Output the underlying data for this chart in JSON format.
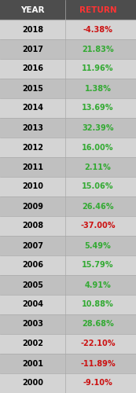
{
  "title_year": "YEAR",
  "title_return": "RETURN",
  "rows": [
    {
      "year": "2018",
      "return": "-4.38%",
      "negative": true
    },
    {
      "year": "2017",
      "return": "21.83%",
      "negative": false
    },
    {
      "year": "2016",
      "return": "11.96%",
      "negative": false
    },
    {
      "year": "2015",
      "return": "1.38%",
      "negative": false
    },
    {
      "year": "2014",
      "return": "13.69%",
      "negative": false
    },
    {
      "year": "2013",
      "return": "32.39%",
      "negative": false
    },
    {
      "year": "2012",
      "return": "16.00%",
      "negative": false
    },
    {
      "year": "2011",
      "return": "2.11%",
      "negative": false
    },
    {
      "year": "2010",
      "return": "15.06%",
      "negative": false
    },
    {
      "year": "2009",
      "return": "26.46%",
      "negative": false
    },
    {
      "year": "2008",
      "return": "-37.00%",
      "negative": true
    },
    {
      "year": "2007",
      "return": "5.49%",
      "negative": false
    },
    {
      "year": "2006",
      "return": "15.79%",
      "negative": false
    },
    {
      "year": "2005",
      "return": "4.91%",
      "negative": false
    },
    {
      "year": "2004",
      "return": "10.88%",
      "negative": false
    },
    {
      "year": "2003",
      "return": "28.68%",
      "negative": false
    },
    {
      "year": "2002",
      "return": "-22.10%",
      "negative": true
    },
    {
      "year": "2001",
      "return": "-11.89%",
      "negative": true
    },
    {
      "year": "2000",
      "return": "-9.10%",
      "negative": true
    }
  ],
  "header_bg": "#4d4d4d",
  "header_text_color": "#ffffff",
  "header_return_color": "#ff3333",
  "row_bg_odd": "#d4d4d4",
  "row_bg_even": "#c0c0c0",
  "positive_color": "#33aa33",
  "negative_color": "#cc1111",
  "year_color": "#000000",
  "divider_color": "#aaaaaa",
  "outer_border_color": "#555555",
  "header_fontsize": 7.5,
  "row_fontsize": 7.0,
  "fig_width": 1.73,
  "fig_height": 5.0,
  "dpi": 100
}
